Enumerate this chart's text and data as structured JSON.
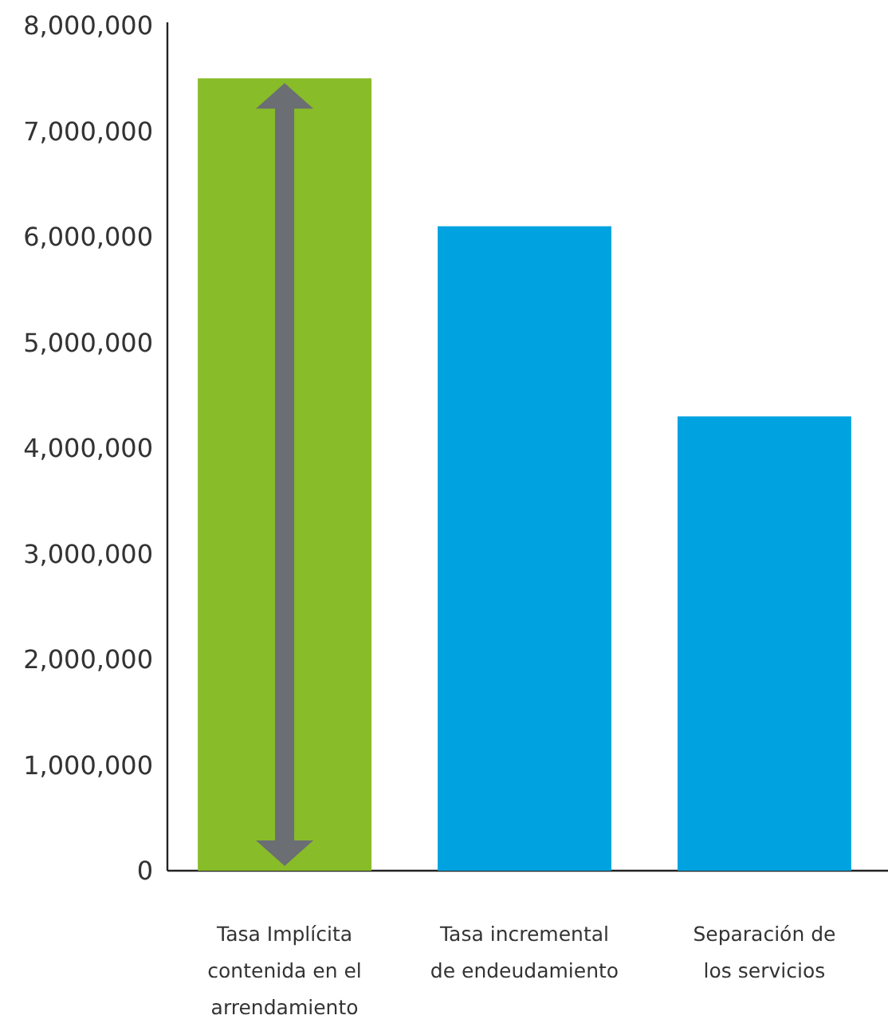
{
  "chart_data": {
    "type": "bar",
    "categories": [
      "Tasa Implícita contenida en el arrendamiento",
      "Tasa incremental de endeudamiento",
      "Separación de los servicios"
    ],
    "values": [
      7500000,
      6100000,
      4300000
    ],
    "colors": [
      "#88bc28",
      "#00a3e0",
      "#00a3e0"
    ],
    "ylim": [
      0,
      8000000
    ],
    "yticks": [
      0,
      {
        "value": 1000000,
        "label": "1,000,000"
      },
      {
        "value": 2000000,
        "label": "2,000,000"
      },
      {
        "value": 3000000,
        "label": "3,000,000"
      },
      {
        "value": 4000000,
        "label": "4,000,000"
      },
      {
        "value": 5000000,
        "label": "5,000,000"
      },
      {
        "value": 6000000,
        "label": "6,000,000"
      },
      {
        "value": 7000000,
        "label": "7,000,000"
      },
      {
        "value": 8000000,
        "label": "8,000,000"
      }
    ]
  }
}
